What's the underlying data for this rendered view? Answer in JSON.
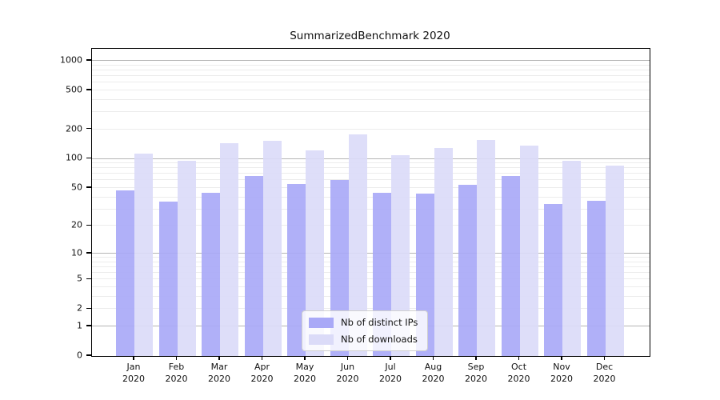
{
  "figure": {
    "title": "SummarizedBenchmark 2020"
  },
  "chart_data": {
    "type": "bar",
    "title": "SummarizedBenchmark 2020",
    "categories": [
      "Jan 2020",
      "Feb 2020",
      "Mar 2020",
      "Apr 2020",
      "May 2020",
      "Jun 2020",
      "Jul 2020",
      "Aug 2020",
      "Sep 2020",
      "Oct 2020",
      "Nov 2020",
      "Dec 2020"
    ],
    "series": [
      {
        "name": "Nb of distinct IPs",
        "color": "#a9a9f7",
        "values": [
          47,
          36,
          45,
          66,
          55,
          60,
          45,
          44,
          54,
          66,
          34,
          37
        ]
      },
      {
        "name": "Nb of downloads",
        "color": "#dbdbf8",
        "values": [
          113,
          95,
          145,
          152,
          122,
          178,
          108,
          130,
          155,
          137,
          95,
          86
        ]
      }
    ],
    "xlabel": "",
    "ylabel": "",
    "yscale": "log1p",
    "y_ticks": [
      0,
      1,
      2,
      5,
      10,
      20,
      50,
      100,
      200,
      500,
      1000
    ],
    "ylim": [
      0,
      1324
    ],
    "grid": true,
    "legend_position": "lower center",
    "colors": {
      "major_grid": "#b5b5b5",
      "minor_grid": "#ececec",
      "axis": "#000000",
      "background": "#ffffff"
    }
  }
}
